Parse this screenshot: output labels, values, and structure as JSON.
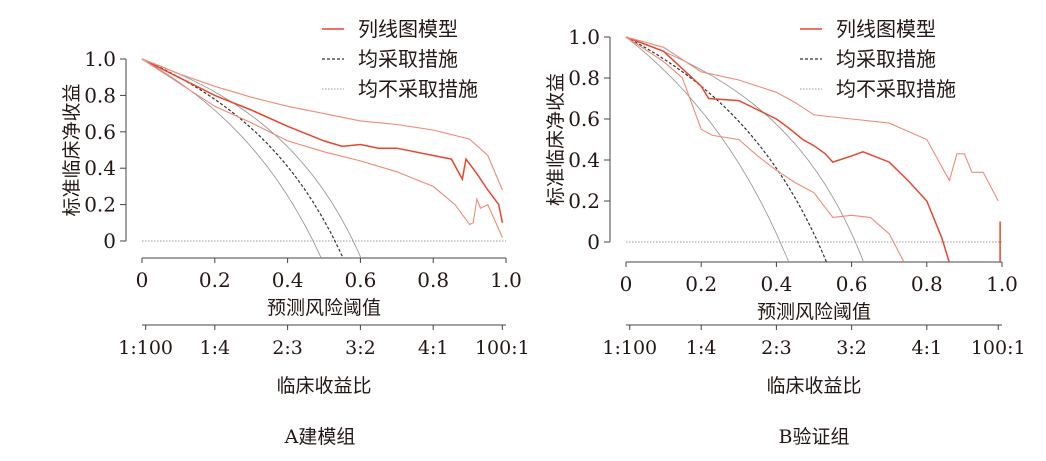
{
  "chart_data": [
    {
      "type": "line",
      "caption": "A建模组",
      "xlabel": "预测风险阈值",
      "ylabel": "标准临床净收益",
      "xlim": [
        0,
        1
      ],
      "ylim": [
        -0.093,
        1
      ],
      "xticks": [
        "0",
        "0.2",
        "0.4",
        "0.6",
        "0.8",
        "1.0"
      ],
      "yticks": [
        "0",
        "0.2",
        "0.4",
        "0.6",
        "0.8",
        "1.0"
      ],
      "secondary_axis": {
        "label": "临床收益比",
        "ticks": [
          {
            "x": 0.01,
            "label": "1:100"
          },
          {
            "x": 0.2,
            "label": "1:4"
          },
          {
            "x": 0.4,
            "label": "2:3"
          },
          {
            "x": 0.6,
            "label": "3:2"
          },
          {
            "x": 0.8,
            "label": "4:1"
          },
          {
            "x": 0.99,
            "label": "100:1"
          }
        ]
      },
      "legend": [
        "列线图模型",
        "均采取措施",
        "均不采取措施"
      ],
      "legend_position": "top-right",
      "treat_all_prevalence": {
        "estimate": 0.53,
        "lower": 0.47,
        "upper": 0.58
      },
      "series": [
        {
          "name": "列线图模型",
          "role": "estimate",
          "x": [
            0,
            0.1,
            0.2,
            0.3,
            0.4,
            0.5,
            0.55,
            0.6,
            0.65,
            0.7,
            0.8,
            0.85,
            0.88,
            0.89,
            0.92,
            0.95,
            0.98,
            0.99
          ],
          "y": [
            1,
            0.9,
            0.8,
            0.72,
            0.63,
            0.55,
            0.52,
            0.53,
            0.51,
            0.51,
            0.47,
            0.45,
            0.34,
            0.45,
            0.37,
            0.28,
            0.2,
            0.1
          ]
        },
        {
          "name": "列线图模型 CI upper",
          "role": "ci",
          "x": [
            0,
            0.1,
            0.2,
            0.3,
            0.4,
            0.5,
            0.6,
            0.7,
            0.8,
            0.9,
            0.95,
            0.99
          ],
          "y": [
            1,
            0.92,
            0.85,
            0.79,
            0.74,
            0.7,
            0.66,
            0.64,
            0.61,
            0.56,
            0.47,
            0.28
          ]
        },
        {
          "name": "列线图模型 CI lower",
          "role": "ci",
          "x": [
            0,
            0.1,
            0.2,
            0.3,
            0.4,
            0.5,
            0.6,
            0.7,
            0.75,
            0.8,
            0.86,
            0.9,
            0.91,
            0.92,
            0.93,
            0.95,
            0.99
          ],
          "y": [
            1,
            0.87,
            0.74,
            0.65,
            0.55,
            0.49,
            0.44,
            0.38,
            0.34,
            0.3,
            0.2,
            0.09,
            0.1,
            0.23,
            0.18,
            0.2,
            0.02
          ]
        }
      ]
    },
    {
      "type": "line",
      "caption": "B验证组",
      "xlabel": "预测风险阈值",
      "ylabel": "标准临床净收益",
      "xlim": [
        0,
        1
      ],
      "ylim": [
        -0.1,
        1
      ],
      "xticks": [
        "0",
        "0.2",
        "0.4",
        "0.6",
        "0.8",
        "1.0"
      ],
      "yticks": [
        "0",
        "0.2",
        "0.4",
        "0.6",
        "0.8",
        "1.0"
      ],
      "secondary_axis": {
        "label": "临床收益比",
        "ticks": [
          {
            "x": 0.01,
            "label": "1:100"
          },
          {
            "x": 0.2,
            "label": "1:4"
          },
          {
            "x": 0.4,
            "label": "2:3"
          },
          {
            "x": 0.6,
            "label": "3:2"
          },
          {
            "x": 0.8,
            "label": "4:1"
          },
          {
            "x": 0.99,
            "label": "100:1"
          }
        ]
      },
      "legend": [
        "列线图模型",
        "均采取措施",
        "均不采取措施"
      ],
      "legend_position": "top-right",
      "treat_all_prevalence": {
        "estimate": 0.51,
        "lower": 0.41,
        "upper": 0.61
      },
      "series": [
        {
          "name": "列线图模型",
          "role": "estimate",
          "x": [
            0,
            0.1,
            0.2,
            0.22,
            0.3,
            0.4,
            0.43,
            0.47,
            0.5,
            0.53,
            0.55,
            0.6,
            0.63,
            0.7,
            0.75,
            0.8,
            0.84,
            0.86
          ],
          "y": [
            1,
            0.93,
            0.76,
            0.7,
            0.69,
            0.6,
            0.56,
            0.5,
            0.47,
            0.43,
            0.39,
            0.42,
            0.44,
            0.39,
            0.3,
            0.2,
            0.02,
            -0.1
          ]
        },
        {
          "name": "列线图模型 CI upper",
          "role": "ci",
          "x": [
            0,
            0.1,
            0.2,
            0.3,
            0.4,
            0.45,
            0.5,
            0.6,
            0.7,
            0.8,
            0.86,
            0.88,
            0.9,
            0.92,
            0.95,
            0.99
          ],
          "y": [
            1,
            0.95,
            0.83,
            0.79,
            0.73,
            0.68,
            0.62,
            0.6,
            0.58,
            0.5,
            0.3,
            0.43,
            0.43,
            0.34,
            0.34,
            0.2
          ]
        },
        {
          "name": "列线图模型 CI lower",
          "role": "ci",
          "x": [
            0,
            0.1,
            0.15,
            0.2,
            0.23,
            0.3,
            0.35,
            0.4,
            0.45,
            0.5,
            0.55,
            0.6,
            0.65,
            0.7,
            0.74
          ],
          "y": [
            1,
            0.88,
            0.8,
            0.55,
            0.52,
            0.5,
            0.42,
            0.35,
            0.29,
            0.24,
            0.12,
            0.13,
            0.12,
            0.04,
            -0.1
          ]
        },
        {
          "name": "列线图模型 tail",
          "role": "estimate",
          "x": [
            0.995,
            0.995
          ],
          "y": [
            -0.1,
            0.1
          ]
        }
      ]
    }
  ],
  "colors": {
    "model": "#e8472e",
    "ci": "#f08a78",
    "treat_all": "#333333",
    "treat_none": "#9a9a9a"
  }
}
